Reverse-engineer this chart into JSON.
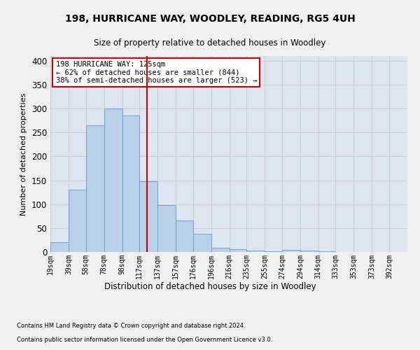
{
  "title1": "198, HURRICANE WAY, WOODLEY, READING, RG5 4UH",
  "title2": "Size of property relative to detached houses in Woodley",
  "xlabel": "Distribution of detached houses by size in Woodley",
  "ylabel": "Number of detached properties",
  "bar_color": "#b8d0e8",
  "bar_edge_color": "#6699cc",
  "vline_color": "#cc0000",
  "vline_x": 125,
  "annotation_text": "198 HURRICANE WAY: 125sqm\n← 62% of detached houses are smaller (844)\n38% of semi-detached houses are larger (523) →",
  "bin_edges": [
    19,
    39,
    58,
    78,
    98,
    117,
    137,
    157,
    176,
    196,
    216,
    235,
    255,
    274,
    294,
    314,
    333,
    353,
    373,
    392,
    412
  ],
  "bin_heights": [
    20,
    130,
    265,
    300,
    285,
    148,
    98,
    66,
    38,
    9,
    6,
    3,
    1,
    5,
    3,
    1,
    0,
    0,
    0,
    0
  ],
  "ylim": [
    0,
    410
  ],
  "yticks": [
    0,
    50,
    100,
    150,
    200,
    250,
    300,
    350,
    400
  ],
  "grid_color": "#c8c8c8",
  "background_color": "#dce6f0",
  "fig_background": "#f0f0f0",
  "footnote1": "Contains HM Land Registry data © Crown copyright and database right 2024.",
  "footnote2": "Contains public sector information licensed under the Open Government Licence v3.0."
}
